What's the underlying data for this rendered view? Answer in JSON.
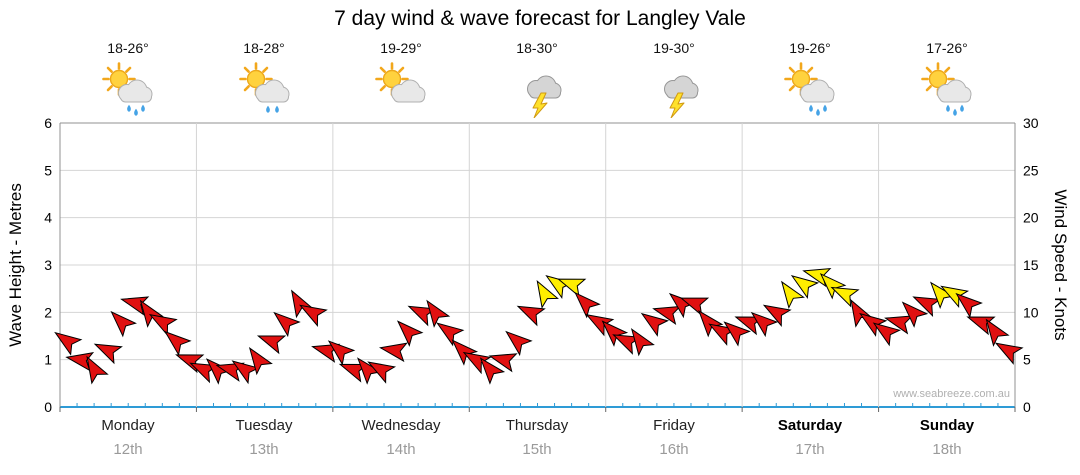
{
  "title": "7 day wind & wave forecast for Langley Vale",
  "watermark": "www.seabreeze.com.au",
  "axes": {
    "left_label": "Wave Height - Metres",
    "right_label": "Wind Speed - Knots",
    "left_ticks": [
      0,
      1,
      2,
      3,
      4,
      5,
      6
    ],
    "right_ticks": [
      0,
      5,
      10,
      15,
      20,
      25,
      30
    ]
  },
  "days": [
    {
      "name": "Monday",
      "date": "12th",
      "temp": "18-26°",
      "icon": "sun-cloud-rain-icon"
    },
    {
      "name": "Tuesday",
      "date": "13th",
      "temp": "18-28°",
      "icon": "sun-cloud-light-rain-icon"
    },
    {
      "name": "Wednesday",
      "date": "14th",
      "temp": "19-29°",
      "icon": "sun-cloud-icon"
    },
    {
      "name": "Thursday",
      "date": "15th",
      "temp": "18-30°",
      "icon": "storm-icon"
    },
    {
      "name": "Friday",
      "date": "16th",
      "temp": "19-30°",
      "icon": "storm-icon"
    },
    {
      "name": "Saturday",
      "date": "17th",
      "temp": "19-26°",
      "icon": "sun-cloud-rain-icon"
    },
    {
      "name": "Sunday",
      "date": "18th",
      "temp": "17-26°",
      "icon": "sun-cloud-rain-icon"
    }
  ],
  "chart_data": {
    "type": "scatter",
    "subtype": "wind-arrow-ribbon",
    "title": "7 day wind & wave forecast for Langley Vale",
    "categories": [
      "Monday 12th",
      "Tuesday 13th",
      "Wednesday 14th",
      "Thursday 15th",
      "Friday 16th",
      "Saturday 17th",
      "Sunday 18th"
    ],
    "samples_per_day": 10,
    "wave_axis": {
      "label": "Wave Height - Metres",
      "range": [
        0,
        6
      ],
      "unit": "m"
    },
    "wind_axis": {
      "label": "Wind Speed - Knots",
      "range": [
        0,
        30
      ],
      "unit": "kn"
    },
    "series": [
      {
        "name": "Wind speed (knots)",
        "values_by_day": [
          [
            7,
            5,
            4,
            6,
            9,
            11,
            10,
            9,
            7,
            5
          ],
          [
            4,
            4,
            4,
            4,
            5,
            7,
            9,
            11,
            10,
            6
          ],
          [
            6,
            4,
            4,
            4,
            6,
            8,
            10,
            10,
            8,
            6
          ],
          [
            5,
            4,
            5,
            7,
            10,
            12,
            13,
            13,
            11,
            9
          ],
          [
            8,
            7,
            7,
            9,
            10,
            11,
            11,
            9,
            8,
            8
          ],
          [
            9,
            9,
            10,
            12,
            13,
            14,
            13,
            12,
            10,
            9
          ],
          [
            8,
            9,
            10,
            11,
            12,
            12,
            11,
            9,
            8,
            6
          ]
        ],
        "arrow_angles_deg_by_day": [
          [
            215,
            190,
            240,
            205,
            225,
            195,
            235,
            210,
            220,
            200
          ],
          [
            205,
            225,
            195,
            215,
            235,
            200,
            220,
            240,
            210,
            195
          ],
          [
            220,
            200,
            230,
            210,
            190,
            225,
            205,
            235,
            215,
            225
          ],
          [
            210,
            230,
            195,
            220,
            205,
            240,
            215,
            200,
            225,
            210
          ],
          [
            225,
            205,
            235,
            215,
            195,
            220,
            200,
            230,
            210,
            220
          ],
          [
            200,
            220,
            210,
            235,
            215,
            195,
            225,
            205,
            240,
            215
          ],
          [
            215,
            195,
            225,
            205,
            230,
            210,
            220,
            200,
            235,
            210
          ]
        ]
      }
    ],
    "strong_wind_threshold_kn": 12,
    "colors": {
      "arrow": "#e01010",
      "arrow_strong": "#ffee00",
      "arrow_outline": "#000000",
      "grid": "#d4d4d4",
      "border": "#909090",
      "bottom_axis": "#2e9bd6",
      "date_text": "#9a9a9a",
      "watermark_text": "#b0b0b0"
    }
  }
}
